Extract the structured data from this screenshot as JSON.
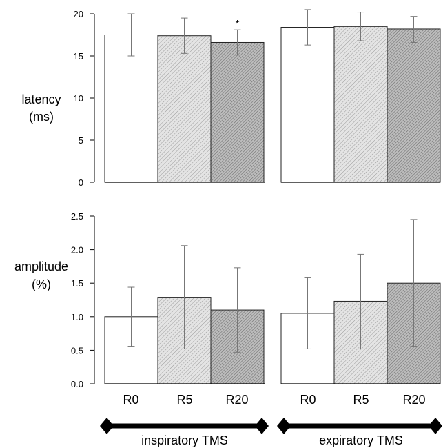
{
  "chart_data": [
    {
      "type": "bar",
      "ylabel": [
        "latency",
        "(ms)"
      ],
      "ylim": [
        0,
        20
      ],
      "yticks": [
        "0",
        "5",
        "10",
        "15",
        "20"
      ],
      "groups": [
        "inspiratory TMS",
        "expiratory TMS"
      ],
      "categories": [
        "R0",
        "R5",
        "R20"
      ],
      "bars": [
        {
          "group": 0,
          "category": "R0",
          "value": 17.5,
          "err_low": 15.0,
          "err_high": 20.0,
          "fill": "plain",
          "annotation": ""
        },
        {
          "group": 0,
          "category": "R5",
          "value": 17.4,
          "err_low": 15.3,
          "err_high": 19.5,
          "fill": "light",
          "annotation": ""
        },
        {
          "group": 0,
          "category": "R20",
          "value": 16.6,
          "err_low": 15.1,
          "err_high": 18.1,
          "fill": "dark",
          "annotation": "*"
        },
        {
          "group": 1,
          "category": "R0",
          "value": 18.4,
          "err_low": 16.3,
          "err_high": 20.5,
          "fill": "plain",
          "annotation": ""
        },
        {
          "group": 1,
          "category": "R5",
          "value": 18.5,
          "err_low": 16.8,
          "err_high": 20.2,
          "fill": "light",
          "annotation": ""
        },
        {
          "group": 1,
          "category": "R20",
          "value": 18.2,
          "err_low": 16.6,
          "err_high": 19.7,
          "fill": "dark",
          "annotation": ""
        }
      ]
    },
    {
      "type": "bar",
      "ylabel": [
        "amplitude",
        "(%)"
      ],
      "ylim": [
        0,
        2.5
      ],
      "yticks": [
        "0.0",
        "0.5",
        "1.0",
        "1.5",
        "2.0",
        "2.5"
      ],
      "groups": [
        "inspiratory TMS",
        "expiratory TMS"
      ],
      "categories": [
        "R0",
        "R5",
        "R20"
      ],
      "bars": [
        {
          "group": 0,
          "category": "R0",
          "value": 1.0,
          "err_low": 0.56,
          "err_high": 1.44,
          "fill": "plain",
          "annotation": ""
        },
        {
          "group": 0,
          "category": "R5",
          "value": 1.29,
          "err_low": 0.52,
          "err_high": 2.06,
          "fill": "light",
          "annotation": ""
        },
        {
          "group": 0,
          "category": "R20",
          "value": 1.1,
          "err_low": 0.47,
          "err_high": 1.73,
          "fill": "dark",
          "annotation": ""
        },
        {
          "group": 1,
          "category": "R0",
          "value": 1.05,
          "err_low": 0.52,
          "err_high": 1.58,
          "fill": "plain",
          "annotation": ""
        },
        {
          "group": 1,
          "category": "R5",
          "value": 1.23,
          "err_low": 0.52,
          "err_high": 1.93,
          "fill": "light",
          "annotation": ""
        },
        {
          "group": 1,
          "category": "R20",
          "value": 1.5,
          "err_low": 0.56,
          "err_high": 2.45,
          "fill": "dark",
          "annotation": ""
        }
      ]
    }
  ],
  "legend_bars": [
    "inspiratory TMS",
    "expiratory TMS"
  ],
  "colors": {
    "plain": "#ffffff",
    "light": "#d6d6d6",
    "dark": "#a6a6a6",
    "axis": "#000000",
    "error": "#777777"
  }
}
